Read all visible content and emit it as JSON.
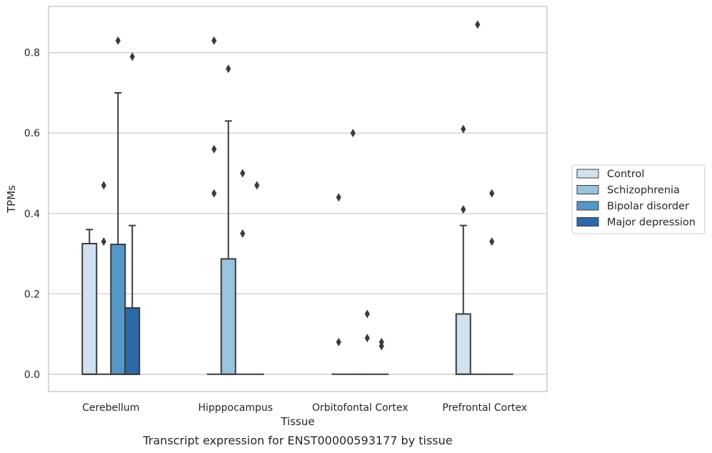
{
  "caption": "Transcript expression for ENST00000593177 by tissue",
  "chart_data": {
    "type": "box",
    "xlabel": "Tissue",
    "ylabel": "TPMs",
    "ylim": [
      -0.043,
      0.915
    ],
    "yticks": [
      "0.0",
      "0.2",
      "0.4",
      "0.6",
      "0.8"
    ],
    "ytick_values": [
      0,
      0.2,
      0.4,
      0.6,
      0.8
    ],
    "grid": "horizontal",
    "legend_position": "right",
    "categories": [
      "Cerebellum",
      "Hipppocampus",
      "Orbitofontal Cortex",
      "Prefrontal Cortex"
    ],
    "series": [
      {
        "name": "Control",
        "color": "#d2e1f0",
        "boxes": [
          {
            "q1": 0,
            "median": 0,
            "q3": 0.325,
            "whisker_low": 0,
            "whisker_high": 0.36,
            "outliers": []
          },
          {
            "q1": 0,
            "median": 0,
            "q3": 0,
            "whisker_low": 0,
            "whisker_high": 0,
            "outliers": [
              0.83,
              0.56,
              0.45
            ]
          },
          {
            "q1": 0,
            "median": 0,
            "q3": 0,
            "whisker_low": 0,
            "whisker_high": 0,
            "outliers": [
              0.44,
              0.08
            ]
          },
          {
            "q1": 0,
            "median": 0,
            "q3": 0.15,
            "whisker_low": 0,
            "whisker_high": 0.37,
            "outliers": [
              0.61,
              0.41
            ]
          }
        ]
      },
      {
        "name": "Schizophrenia",
        "color": "#9ac3dc",
        "boxes": [
          {
            "q1": 0,
            "median": 0,
            "q3": 0,
            "whisker_low": 0,
            "whisker_high": 0,
            "outliers": [
              0.47,
              0.33
            ]
          },
          {
            "q1": 0,
            "median": 0,
            "q3": 0.287,
            "whisker_low": 0,
            "whisker_high": 0.63,
            "outliers": [
              0.76
            ]
          },
          {
            "q1": 0,
            "median": 0,
            "q3": 0,
            "whisker_low": 0,
            "whisker_high": 0,
            "outliers": [
              0.6
            ]
          },
          {
            "q1": 0,
            "median": 0,
            "q3": 0,
            "whisker_low": 0,
            "whisker_high": 0,
            "outliers": [
              0.87
            ]
          }
        ]
      },
      {
        "name": "Bipolar disorder",
        "color": "#5597c7",
        "boxes": [
          {
            "q1": 0,
            "median": 0,
            "q3": 0.323,
            "whisker_low": 0,
            "whisker_high": 0.7,
            "outliers": [
              0.83
            ]
          },
          {
            "q1": 0,
            "median": 0,
            "q3": 0,
            "whisker_low": 0,
            "whisker_high": 0,
            "outliers": [
              0.5,
              0.35
            ]
          },
          {
            "q1": 0,
            "median": 0,
            "q3": 0,
            "whisker_low": 0,
            "whisker_high": 0,
            "outliers": [
              0.15,
              0.09
            ]
          },
          {
            "q1": 0,
            "median": 0,
            "q3": 0,
            "whisker_low": 0,
            "whisker_high": 0,
            "outliers": [
              0.45,
              0.33
            ]
          }
        ]
      },
      {
        "name": "Major depression",
        "color": "#2b6aa6",
        "boxes": [
          {
            "q1": 0,
            "median": 0,
            "q3": 0.165,
            "whisker_low": 0,
            "whisker_high": 0.37,
            "outliers": [
              0.79
            ]
          },
          {
            "q1": 0,
            "median": 0,
            "q3": 0,
            "whisker_low": 0,
            "whisker_high": 0,
            "outliers": [
              0.47
            ]
          },
          {
            "q1": 0,
            "median": 0,
            "q3": 0,
            "whisker_low": 0,
            "whisker_high": 0,
            "outliers": [
              0.08,
              0.07
            ]
          },
          {
            "q1": 0,
            "median": 0,
            "q3": 0,
            "whisker_low": 0,
            "whisker_high": 0,
            "outliers": []
          }
        ]
      }
    ]
  }
}
